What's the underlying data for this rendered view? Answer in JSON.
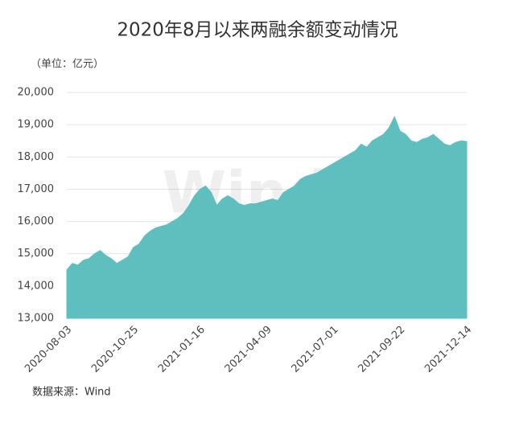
{
  "chart_data": {
    "type": "area",
    "title": "2020年8月以来两融余额变动情况",
    "unit_note": "（单位：亿元）",
    "source": "数据来源：Wind",
    "watermark": "Wind",
    "categories": [
      "2020-08-03",
      null,
      null,
      null,
      null,
      null,
      null,
      null,
      null,
      null,
      null,
      null,
      "2020-10-25",
      null,
      null,
      null,
      null,
      null,
      null,
      null,
      null,
      null,
      null,
      null,
      "2021-01-16",
      null,
      null,
      null,
      null,
      null,
      null,
      null,
      null,
      null,
      null,
      null,
      "2021-04-09",
      null,
      null,
      null,
      null,
      null,
      null,
      null,
      null,
      null,
      null,
      null,
      "2021-07-01",
      null,
      null,
      null,
      null,
      null,
      null,
      null,
      null,
      null,
      null,
      null,
      "2021-09-22",
      null,
      null,
      null,
      null,
      null,
      null,
      null,
      null,
      null,
      null,
      null,
      "2021-12-14"
    ],
    "series": [
      {
        "color": "#5fbfbf",
        "values": [
          14500,
          14700,
          14650,
          14800,
          14850,
          15000,
          15100,
          14950,
          14850,
          14700,
          14800,
          14900,
          15200,
          15300,
          15550,
          15700,
          15800,
          15850,
          15900,
          16000,
          16100,
          16250,
          16500,
          16800,
          17000,
          17100,
          16900,
          16500,
          16700,
          16800,
          16700,
          16550,
          16500,
          16550,
          16550,
          16600,
          16650,
          16700,
          16650,
          16900,
          17000,
          17100,
          17300,
          17400,
          17450,
          17500,
          17600,
          17700,
          17800,
          17900,
          18000,
          18100,
          18200,
          18400,
          18300,
          18500,
          18600,
          18700,
          18900,
          19250,
          18800,
          18700,
          18500,
          18450,
          18550,
          18600,
          18700,
          18550,
          18400,
          18350,
          18450,
          18500,
          18480
        ]
      }
    ],
    "ylim": [
      13000,
      20000
    ],
    "yticks": [
      {
        "value": 13000,
        "label": "13,000"
      },
      {
        "value": 14000,
        "label": "14,000"
      },
      {
        "value": 15000,
        "label": "15,000"
      },
      {
        "value": 16000,
        "label": "16,000"
      },
      {
        "value": 17000,
        "label": "17,000"
      },
      {
        "value": 18000,
        "label": "18,000"
      },
      {
        "value": 19000,
        "label": "19,000"
      },
      {
        "value": 20000,
        "label": "20,000"
      }
    ],
    "grid": true
  }
}
